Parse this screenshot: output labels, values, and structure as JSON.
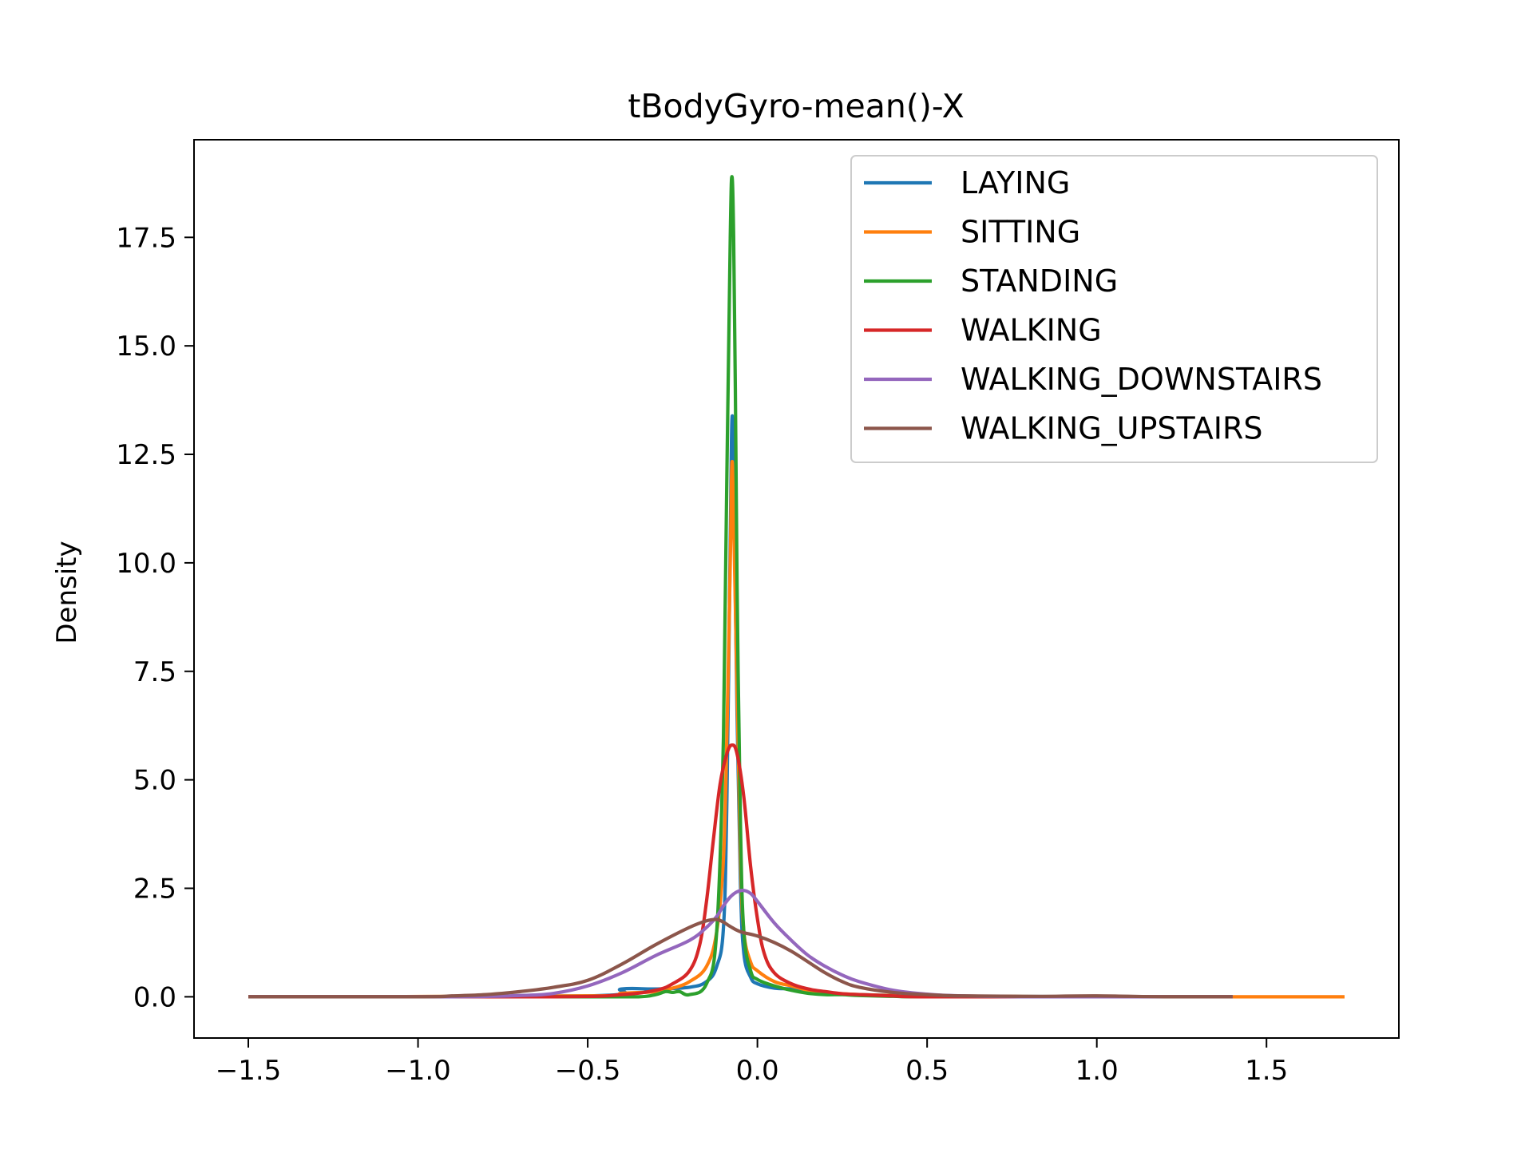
{
  "chart_data": {
    "type": "line",
    "title": "tBodyGyro-mean()-X",
    "xlabel": "",
    "ylabel": "Density",
    "xlim": [
      -1.66,
      1.89
    ],
    "ylim": [
      -0.95,
      19.75
    ],
    "xticks": [
      -1.5,
      -1.0,
      -0.5,
      0.0,
      0.5,
      1.0,
      1.5
    ],
    "xtick_labels": [
      "−1.5",
      "−1.0",
      "−0.5",
      "0.0",
      "0.5",
      "1.0",
      "1.5"
    ],
    "yticks": [
      0.0,
      2.5,
      5.0,
      7.5,
      10.0,
      12.5,
      15.0,
      17.5
    ],
    "ytick_labels": [
      "0.0",
      "2.5",
      "5.0",
      "7.5",
      "10.0",
      "12.5",
      "15.0",
      "17.5"
    ],
    "grid": false,
    "legend_position": "top-right",
    "series": [
      {
        "name": "LAYING",
        "color": "#1f77b4",
        "x": [
          -1.5,
          -0.5,
          -0.4,
          -0.3,
          -0.2,
          -0.15,
          -0.12,
          -0.1,
          -0.09,
          -0.08,
          -0.075,
          -0.07,
          -0.06,
          -0.05,
          -0.04,
          -0.02,
          0.0,
          0.05,
          0.1,
          0.15,
          0.2,
          0.3,
          0.4,
          0.5,
          1.0,
          1.4
        ],
        "y": [
          0,
          0.02,
          0.18,
          0.18,
          0.22,
          0.35,
          0.7,
          1.6,
          4.5,
          10.5,
          13.3,
          12.0,
          6.5,
          2.6,
          1.0,
          0.45,
          0.3,
          0.2,
          0.18,
          0.12,
          0.07,
          0.05,
          0.03,
          0.02,
          0.0,
          0.0
        ]
      },
      {
        "name": "SITTING",
        "color": "#ff7f0e",
        "x": [
          -1.5,
          -0.5,
          -0.4,
          -0.3,
          -0.25,
          -0.2,
          -0.15,
          -0.12,
          -0.1,
          -0.09,
          -0.08,
          -0.075,
          -0.07,
          -0.06,
          -0.05,
          -0.04,
          -0.02,
          0.0,
          0.05,
          0.1,
          0.15,
          0.2,
          0.3,
          0.4,
          0.5,
          1.0,
          1.5,
          1.73
        ],
        "y": [
          0,
          0.02,
          0.08,
          0.12,
          0.2,
          0.35,
          0.7,
          1.5,
          3.2,
          6.0,
          10.0,
          12.3,
          11.0,
          7.0,
          3.2,
          1.5,
          0.8,
          0.6,
          0.35,
          0.25,
          0.15,
          0.1,
          0.05,
          0.03,
          0.02,
          0.0,
          0.0,
          0.0
        ]
      },
      {
        "name": "STANDING",
        "color": "#2ca02c",
        "x": [
          -1.5,
          -0.5,
          -0.35,
          -0.3,
          -0.27,
          -0.25,
          -0.23,
          -0.2,
          -0.15,
          -0.12,
          -0.1,
          -0.09,
          -0.08,
          -0.075,
          -0.07,
          -0.065,
          -0.06,
          -0.05,
          -0.04,
          -0.02,
          0.0,
          0.05,
          0.1,
          0.15,
          0.2,
          0.25,
          0.3,
          0.4,
          0.5,
          1.0,
          1.4
        ],
        "y": [
          0,
          0.0,
          0.0,
          0.05,
          0.12,
          0.1,
          0.12,
          0.05,
          0.3,
          1.5,
          6.0,
          12.0,
          17.5,
          18.9,
          17.5,
          14.0,
          9.5,
          4.0,
          1.5,
          0.6,
          0.4,
          0.25,
          0.15,
          0.08,
          0.05,
          0.05,
          0.03,
          0.01,
          0.0,
          0.0,
          0.0
        ]
      },
      {
        "name": "WALKING",
        "color": "#d62728",
        "x": [
          -1.5,
          -0.6,
          -0.4,
          -0.3,
          -0.25,
          -0.2,
          -0.17,
          -0.15,
          -0.13,
          -0.11,
          -0.09,
          -0.075,
          -0.06,
          -0.04,
          -0.02,
          0.0,
          0.02,
          0.05,
          0.1,
          0.15,
          0.2,
          0.25,
          0.3,
          0.4,
          0.5,
          1.0,
          1.4
        ],
        "y": [
          0,
          0.0,
          0.05,
          0.15,
          0.3,
          0.6,
          1.2,
          2.2,
          3.6,
          4.9,
          5.6,
          5.8,
          5.6,
          4.6,
          3.0,
          1.8,
          1.0,
          0.55,
          0.3,
          0.18,
          0.12,
          0.07,
          0.05,
          0.02,
          0.0,
          0.0,
          0.0
        ]
      },
      {
        "name": "WALKING_DOWNSTAIRS",
        "color": "#9467bd",
        "x": [
          -1.5,
          -0.9,
          -0.7,
          -0.6,
          -0.5,
          -0.4,
          -0.3,
          -0.2,
          -0.15,
          -0.12,
          -0.1,
          -0.08,
          -0.06,
          -0.04,
          -0.02,
          0.0,
          0.05,
          0.1,
          0.15,
          0.2,
          0.25,
          0.3,
          0.4,
          0.5,
          0.6,
          0.8,
          1.0,
          1.4
        ],
        "y": [
          0,
          0.0,
          0.03,
          0.08,
          0.25,
          0.55,
          0.95,
          1.3,
          1.6,
          1.85,
          2.1,
          2.3,
          2.42,
          2.45,
          2.38,
          2.2,
          1.7,
          1.3,
          0.95,
          0.7,
          0.5,
          0.35,
          0.15,
          0.06,
          0.02,
          0.0,
          0.0,
          0.0
        ]
      },
      {
        "name": "WALKING_UPSTAIRS",
        "color": "#8c564b",
        "x": [
          -1.5,
          -1.0,
          -0.9,
          -0.8,
          -0.7,
          -0.6,
          -0.5,
          -0.4,
          -0.3,
          -0.2,
          -0.15,
          -0.12,
          -0.1,
          -0.08,
          -0.05,
          0.0,
          0.05,
          0.1,
          0.15,
          0.2,
          0.25,
          0.3,
          0.4,
          0.5,
          0.6,
          0.8,
          1.0,
          1.2,
          1.4
        ],
        "y": [
          0,
          0.0,
          0.02,
          0.05,
          0.12,
          0.22,
          0.38,
          0.75,
          1.2,
          1.6,
          1.75,
          1.78,
          1.72,
          1.62,
          1.5,
          1.4,
          1.25,
          1.05,
          0.8,
          0.55,
          0.35,
          0.22,
          0.1,
          0.05,
          0.02,
          0.01,
          0.02,
          0.0,
          0.0
        ]
      }
    ]
  }
}
